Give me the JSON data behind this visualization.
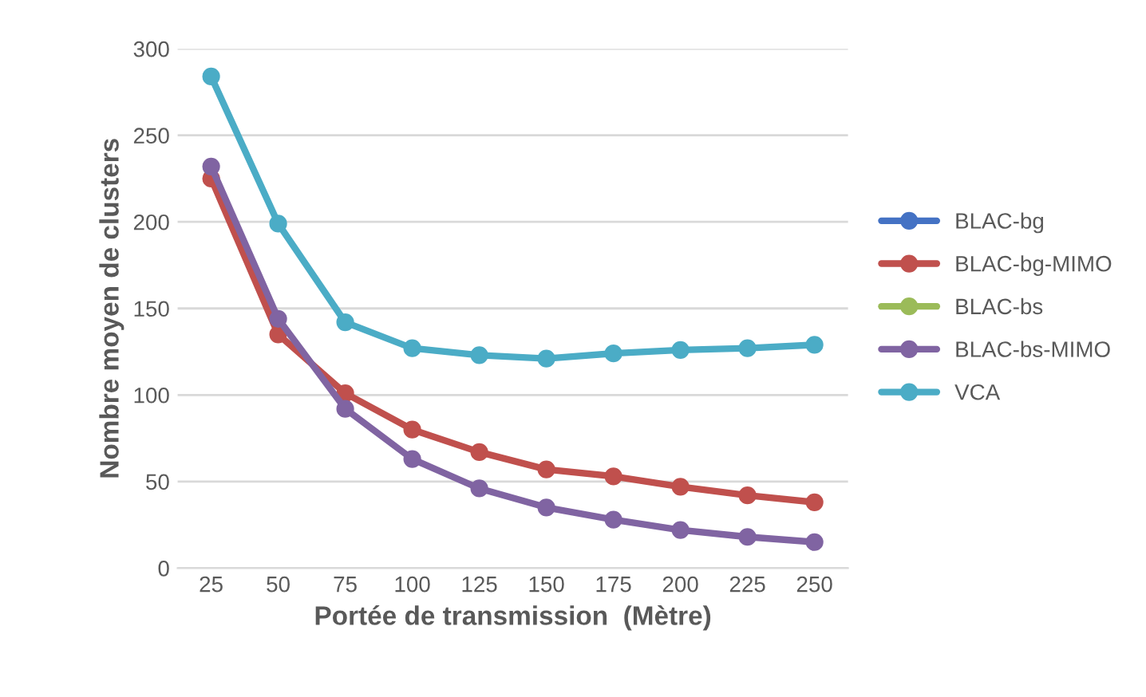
{
  "chart_data": {
    "type": "line",
    "xlabel": "Portée de transmission  (Mètre)",
    "ylabel": "Nombre moyen de clusters",
    "categories": [
      "25",
      "50",
      "75",
      "100",
      "125",
      "150",
      "175",
      "200",
      "225",
      "250"
    ],
    "series": [
      {
        "name": "BLAC-bg",
        "color": "#4472c4",
        "values": [
          null,
          null,
          null,
          null,
          null,
          null,
          null,
          null,
          null,
          null
        ]
      },
      {
        "name": "BLAC-bg-MIMO",
        "color": "#c0504d",
        "values": [
          225,
          135,
          101,
          80,
          67,
          57,
          53,
          47,
          42,
          38
        ]
      },
      {
        "name": "BLAC-bs",
        "color": "#9bbb59",
        "values": [
          null,
          null,
          null,
          null,
          null,
          null,
          null,
          null,
          null,
          null
        ]
      },
      {
        "name": "BLAC-bs-MIMO",
        "color": "#8064a2",
        "values": [
          232,
          144,
          92,
          63,
          46,
          35,
          28,
          22,
          18,
          15
        ]
      },
      {
        "name": "VCA",
        "color": "#4bacc6",
        "values": [
          284,
          199,
          142,
          127,
          123,
          121,
          124,
          126,
          127,
          129
        ]
      }
    ],
    "ylim": [
      0,
      300
    ],
    "yticks": [
      0,
      50,
      100,
      150,
      200,
      250,
      300
    ],
    "grid": "y",
    "legend": "right",
    "marker": "circle",
    "line_style": "solid"
  }
}
